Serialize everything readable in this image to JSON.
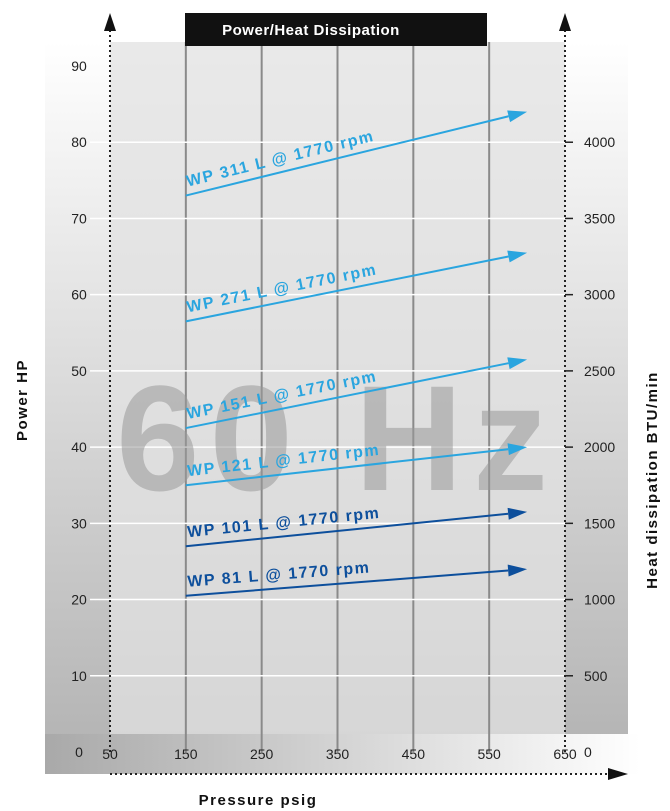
{
  "chart_data": {
    "type": "line",
    "title": "Power/Heat Dissipation",
    "watermark": "60 Hz",
    "xlabel": "Pressure psig",
    "ylabel": "Power HP",
    "ylabel_right": "Heat dissipation BTU/min",
    "xlim": [
      50,
      650
    ],
    "ylim": [
      0,
      90
    ],
    "ylim_right": [
      0,
      4500
    ],
    "x_ticks": [
      "50",
      "150",
      "250",
      "350",
      "450",
      "550",
      "650"
    ],
    "y_ticks": [
      "0",
      "10",
      "20",
      "30",
      "40",
      "50",
      "60",
      "70",
      "80",
      "90"
    ],
    "y_right_ticks": [
      "0",
      "500",
      "1000",
      "1500",
      "2000",
      "2500",
      "3000",
      "3500",
      "4000"
    ],
    "grid": true,
    "series": [
      {
        "name": "WP 311 L @ 1770 rpm",
        "color": "#2aa5df",
        "x": [
          150,
          600
        ],
        "y": [
          73,
          84
        ]
      },
      {
        "name": "WP 271 L @ 1770 rpm",
        "color": "#2aa5df",
        "x": [
          150,
          600
        ],
        "y": [
          56.5,
          65.5
        ]
      },
      {
        "name": "WP 151 L @ 1770 rpm",
        "color": "#2aa5df",
        "x": [
          150,
          600
        ],
        "y": [
          42.5,
          51.5
        ]
      },
      {
        "name": "WP 121 L @ 1770 rpm",
        "color": "#2aa5df",
        "x": [
          150,
          600
        ],
        "y": [
          35,
          40
        ]
      },
      {
        "name": "WP 101 L @ 1770 rpm",
        "color": "#0d4f9c",
        "x": [
          150,
          600
        ],
        "y": [
          27,
          31.5
        ]
      },
      {
        "name": "WP 81 L @ 1770 rpm",
        "color": "#0d4f9c",
        "x": [
          150,
          600
        ],
        "y": [
          20.5,
          24
        ]
      }
    ]
  }
}
